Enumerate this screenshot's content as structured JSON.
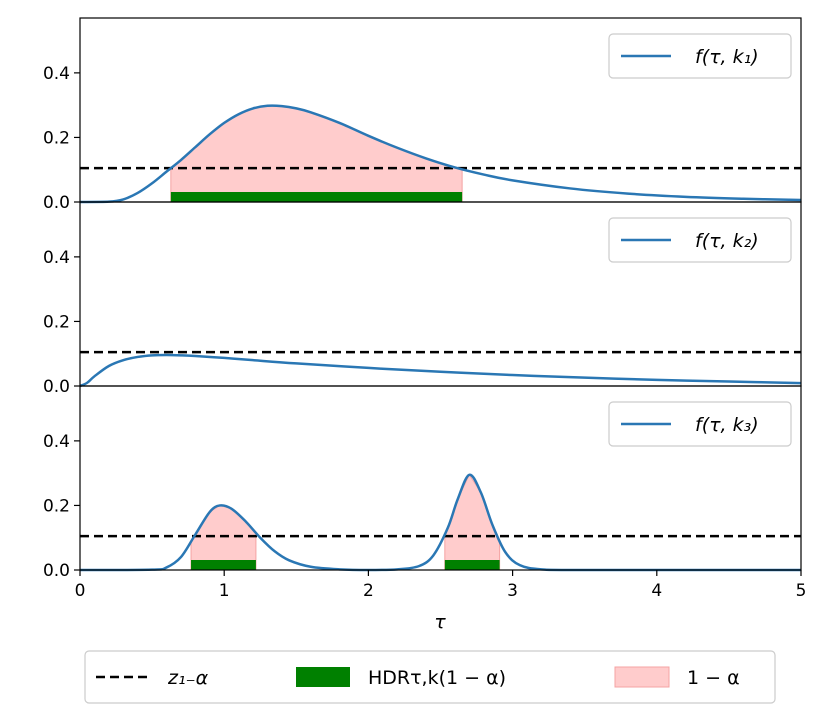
{
  "chart_data": {
    "type": "line",
    "xlabel": "τ",
    "xlim": [
      0,
      5
    ],
    "xticks": [
      "0",
      "1",
      "2",
      "3",
      "4",
      "5"
    ],
    "ylim": [
      0,
      0.57
    ],
    "yticks": [
      "0.0",
      "0.2",
      "0.4"
    ],
    "threshold": 0.105,
    "colors": {
      "curve": "#2a77b4",
      "hdr": "#008000",
      "region": "#ffcccc",
      "region_edge": "#f4a3a3"
    },
    "panels": [
      {
        "legend": "f(τ, k₁)",
        "x": [
          0,
          0.2,
          0.3,
          0.4,
          0.5,
          0.6,
          0.7,
          0.8,
          0.9,
          1.0,
          1.1,
          1.2,
          1.3,
          1.4,
          1.5,
          1.6,
          1.8,
          2.0,
          2.2,
          2.4,
          2.6,
          2.8,
          3.0,
          3.4,
          3.8,
          4.2,
          4.6,
          5.0
        ],
        "y": [
          0,
          0.001,
          0.008,
          0.028,
          0.058,
          0.094,
          0.13,
          0.17,
          0.21,
          0.245,
          0.272,
          0.29,
          0.298,
          0.297,
          0.29,
          0.278,
          0.245,
          0.205,
          0.168,
          0.135,
          0.107,
          0.085,
          0.067,
          0.042,
          0.026,
          0.016,
          0.01,
          0.006
        ],
        "hdr": [
          [
            0.63,
            2.65
          ]
        ]
      },
      {
        "legend": "f(τ, k₂)",
        "x": [
          0,
          0.05,
          0.1,
          0.2,
          0.3,
          0.4,
          0.5,
          0.6,
          0.7,
          0.8,
          1.0,
          1.2,
          1.5,
          2.0,
          2.5,
          3.0,
          3.5,
          4.0,
          4.5,
          5.0
        ],
        "y": [
          0,
          0.01,
          0.03,
          0.062,
          0.08,
          0.09,
          0.095,
          0.096,
          0.095,
          0.093,
          0.087,
          0.08,
          0.07,
          0.056,
          0.044,
          0.034,
          0.026,
          0.019,
          0.014,
          0.009
        ],
        "hdr": []
      },
      {
        "legend": "f(τ, k₃)",
        "x": [
          0,
          0.5,
          0.6,
          0.7,
          0.8,
          0.9,
          0.97,
          1.05,
          1.15,
          1.25,
          1.35,
          1.45,
          1.6,
          1.8,
          2.0,
          2.2,
          2.35,
          2.45,
          2.55,
          2.62,
          2.7,
          2.78,
          2.86,
          2.95,
          3.05,
          3.2,
          3.5,
          5.0
        ],
        "y": [
          0,
          0.001,
          0.008,
          0.04,
          0.11,
          0.18,
          0.2,
          0.19,
          0.15,
          0.1,
          0.058,
          0.03,
          0.01,
          0.002,
          0.0,
          0.002,
          0.012,
          0.045,
          0.13,
          0.22,
          0.295,
          0.24,
          0.14,
          0.055,
          0.015,
          0.002,
          0.0,
          0.0
        ],
        "hdr": [
          [
            0.77,
            1.22
          ],
          [
            2.53,
            2.91
          ]
        ]
      }
    ],
    "legend": {
      "entries": [
        {
          "kind": "dashed",
          "label": "z₁₋α"
        },
        {
          "kind": "hdr",
          "label": "HDRτ,k(1 − α)"
        },
        {
          "kind": "region",
          "label": "1 − α"
        }
      ],
      "placement": "bottom-center"
    }
  }
}
